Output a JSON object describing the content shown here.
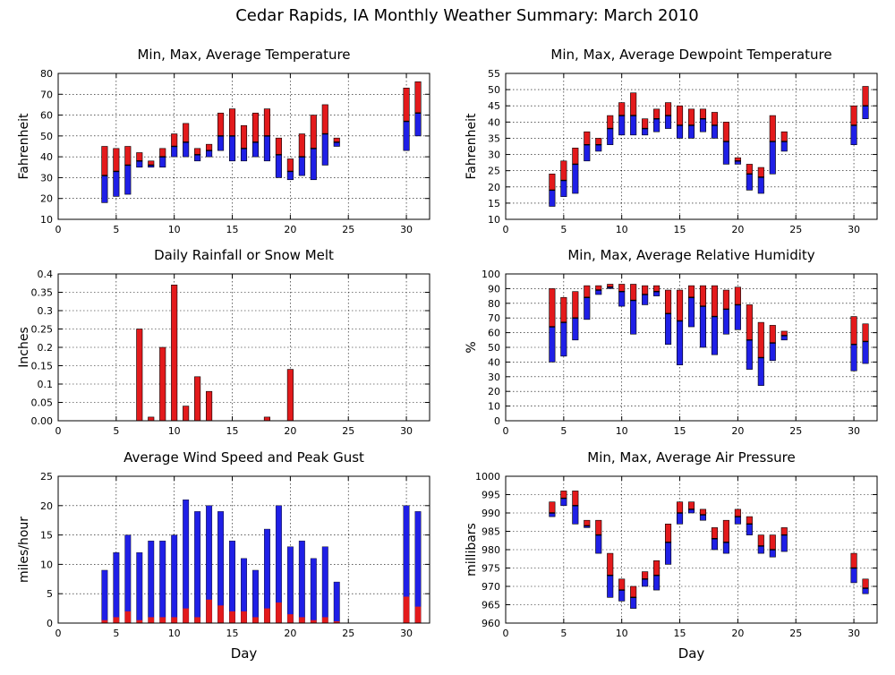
{
  "page_title": "Cedar Rapids, IA Monthly Weather Summary: March 2010",
  "colors": {
    "max_bar": "#e31a1c",
    "min_bar": "#1f1fe6",
    "avg_mark": "#000000",
    "gust_bar": "#1f1fe6",
    "speed_bar": "#e31a1c",
    "rain_bar": "#e31a1c"
  },
  "chart_data": [
    {
      "id": "temperature",
      "type": "bar",
      "title": "Min, Max, Average Temperature",
      "xlabel": "",
      "ylabel": "Fahrenheit",
      "xlim": [
        0,
        32
      ],
      "ylim": [
        10,
        80
      ],
      "x_ticks": [
        0,
        5,
        10,
        15,
        20,
        25,
        30
      ],
      "y_ticks": [
        10,
        20,
        30,
        40,
        50,
        60,
        70,
        80
      ],
      "grid": true,
      "days": [
        {
          "x": 4,
          "min": 18,
          "avg": 31,
          "max": 45
        },
        {
          "x": 5,
          "min": 21,
          "avg": 33,
          "max": 44
        },
        {
          "x": 6,
          "min": 22,
          "avg": 36,
          "max": 45
        },
        {
          "x": 7,
          "min": 35,
          "avg": 38,
          "max": 42
        },
        {
          "x": 8,
          "min": 35,
          "avg": 36,
          "max": 38
        },
        {
          "x": 9,
          "min": 35,
          "avg": 40,
          "max": 44
        },
        {
          "x": 10,
          "min": 40,
          "avg": 45,
          "max": 51
        },
        {
          "x": 11,
          "min": 40,
          "avg": 47,
          "max": 56
        },
        {
          "x": 12,
          "min": 38,
          "avg": 41,
          "max": 44
        },
        {
          "x": 13,
          "min": 40,
          "avg": 43,
          "max": 46
        },
        {
          "x": 14,
          "min": 43,
          "avg": 50,
          "max": 61
        },
        {
          "x": 15,
          "min": 38,
          "avg": 50,
          "max": 63
        },
        {
          "x": 16,
          "min": 38,
          "avg": 44,
          "max": 55
        },
        {
          "x": 17,
          "min": 40,
          "avg": 47,
          "max": 61
        },
        {
          "x": 18,
          "min": 38,
          "avg": 50,
          "max": 63
        },
        {
          "x": 19,
          "min": 30,
          "avg": 41,
          "max": 49
        },
        {
          "x": 20,
          "min": 29,
          "avg": 33,
          "max": 39
        },
        {
          "x": 21,
          "min": 31,
          "avg": 40,
          "max": 51
        },
        {
          "x": 22,
          "min": 29,
          "avg": 44,
          "max": 60
        },
        {
          "x": 23,
          "min": 36,
          "avg": 51,
          "max": 65
        },
        {
          "x": 24,
          "min": 45,
          "avg": 47,
          "max": 49
        },
        {
          "x": 30,
          "min": 43,
          "avg": 57,
          "max": 73
        },
        {
          "x": 31,
          "min": 50,
          "avg": 61,
          "max": 76
        }
      ]
    },
    {
      "id": "dewpoint",
      "type": "bar",
      "title": "Min, Max, Average Dewpoint Temperature",
      "xlabel": "",
      "ylabel": "Fahrenheit",
      "xlim": [
        0,
        32
      ],
      "ylim": [
        10,
        55
      ],
      "x_ticks": [
        0,
        5,
        10,
        15,
        20,
        25,
        30
      ],
      "y_ticks": [
        10,
        15,
        20,
        25,
        30,
        35,
        40,
        45,
        50,
        55
      ],
      "grid": true,
      "days": [
        {
          "x": 4,
          "min": 14,
          "avg": 19,
          "max": 24
        },
        {
          "x": 5,
          "min": 17,
          "avg": 22,
          "max": 28
        },
        {
          "x": 6,
          "min": 18,
          "avg": 27,
          "max": 32
        },
        {
          "x": 7,
          "min": 28,
          "avg": 33,
          "max": 37
        },
        {
          "x": 8,
          "min": 31,
          "avg": 33,
          "max": 35
        },
        {
          "x": 9,
          "min": 33,
          "avg": 38,
          "max": 42
        },
        {
          "x": 10,
          "min": 36,
          "avg": 42,
          "max": 46
        },
        {
          "x": 11,
          "min": 36,
          "avg": 42,
          "max": 49
        },
        {
          "x": 12,
          "min": 36,
          "avg": 38,
          "max": 41
        },
        {
          "x": 13,
          "min": 37,
          "avg": 41,
          "max": 44
        },
        {
          "x": 14,
          "min": 38,
          "avg": 42,
          "max": 46
        },
        {
          "x": 15,
          "min": 35,
          "avg": 39,
          "max": 45
        },
        {
          "x": 16,
          "min": 35,
          "avg": 39,
          "max": 44
        },
        {
          "x": 17,
          "min": 37,
          "avg": 41,
          "max": 44
        },
        {
          "x": 18,
          "min": 35,
          "avg": 39,
          "max": 43
        },
        {
          "x": 19,
          "min": 27,
          "avg": 34,
          "max": 40
        },
        {
          "x": 20,
          "min": 27,
          "avg": 28,
          "max": 29
        },
        {
          "x": 21,
          "min": 19,
          "avg": 24,
          "max": 27
        },
        {
          "x": 22,
          "min": 18,
          "avg": 23,
          "max": 26
        },
        {
          "x": 23,
          "min": 24,
          "avg": 34,
          "max": 42
        },
        {
          "x": 24,
          "min": 31,
          "avg": 34,
          "max": 37
        },
        {
          "x": 30,
          "min": 33,
          "avg": 39,
          "max": 45
        },
        {
          "x": 31,
          "min": 41,
          "avg": 45,
          "max": 51
        }
      ]
    },
    {
      "id": "rainfall",
      "type": "bar",
      "title": "Daily Rainfall or Snow Melt",
      "xlabel": "",
      "ylabel": "Inches",
      "xlim": [
        0,
        32
      ],
      "ylim": [
        0,
        0.4
      ],
      "x_ticks": [
        0,
        5,
        10,
        15,
        20,
        25,
        30
      ],
      "y_ticks": [
        0,
        0.05,
        0.1,
        0.15,
        0.2,
        0.25,
        0.3,
        0.35,
        0.4
      ],
      "y_tick_labels": [
        "0.00",
        "0.05",
        "0.1",
        "0.15",
        "0.2",
        "0.25",
        "0.3",
        "0.35",
        "0.4"
      ],
      "grid": true,
      "values": [
        {
          "x": 7,
          "v": 0.25
        },
        {
          "x": 8,
          "v": 0.01
        },
        {
          "x": 9,
          "v": 0.2
        },
        {
          "x": 10,
          "v": 0.37
        },
        {
          "x": 11,
          "v": 0.04
        },
        {
          "x": 12,
          "v": 0.12
        },
        {
          "x": 13,
          "v": 0.08
        },
        {
          "x": 18,
          "v": 0.01
        },
        {
          "x": 20,
          "v": 0.14
        }
      ]
    },
    {
      "id": "humidity",
      "type": "bar",
      "title": "Min, Max, Average Relative Humidity",
      "xlabel": "",
      "ylabel": "%",
      "xlim": [
        0,
        32
      ],
      "ylim": [
        0,
        100
      ],
      "x_ticks": [
        0,
        5,
        10,
        15,
        20,
        25,
        30
      ],
      "y_ticks": [
        0,
        10,
        20,
        30,
        40,
        50,
        60,
        70,
        80,
        90,
        100
      ],
      "grid": true,
      "days": [
        {
          "x": 4,
          "min": 40,
          "avg": 64,
          "max": 90
        },
        {
          "x": 5,
          "min": 44,
          "avg": 67,
          "max": 84
        },
        {
          "x": 6,
          "min": 55,
          "avg": 70,
          "max": 88
        },
        {
          "x": 7,
          "min": 69,
          "avg": 84,
          "max": 92
        },
        {
          "x": 8,
          "min": 86,
          "avg": 89,
          "max": 92
        },
        {
          "x": 9,
          "min": 90,
          "avg": 91,
          "max": 93
        },
        {
          "x": 10,
          "min": 78,
          "avg": 88,
          "max": 93
        },
        {
          "x": 11,
          "min": 59,
          "avg": 82,
          "max": 93
        },
        {
          "x": 12,
          "min": 79,
          "avg": 86,
          "max": 92
        },
        {
          "x": 13,
          "min": 85,
          "avg": 88,
          "max": 92
        },
        {
          "x": 14,
          "min": 52,
          "avg": 73,
          "max": 89
        },
        {
          "x": 15,
          "min": 38,
          "avg": 68,
          "max": 89
        },
        {
          "x": 16,
          "min": 64,
          "avg": 84,
          "max": 92
        },
        {
          "x": 17,
          "min": 50,
          "avg": 78,
          "max": 92
        },
        {
          "x": 18,
          "min": 45,
          "avg": 71,
          "max": 92
        },
        {
          "x": 19,
          "min": 59,
          "avg": 76,
          "max": 89
        },
        {
          "x": 20,
          "min": 62,
          "avg": 79,
          "max": 91
        },
        {
          "x": 21,
          "min": 35,
          "avg": 55,
          "max": 79
        },
        {
          "x": 22,
          "min": 24,
          "avg": 43,
          "max": 67
        },
        {
          "x": 23,
          "min": 41,
          "avg": 53,
          "max": 65
        },
        {
          "x": 24,
          "min": 55,
          "avg": 58,
          "max": 61
        },
        {
          "x": 30,
          "min": 34,
          "avg": 52,
          "max": 71
        },
        {
          "x": 31,
          "min": 39,
          "avg": 54,
          "max": 66
        }
      ]
    },
    {
      "id": "wind",
      "type": "bar",
      "title": "Average Wind Speed and Peak Gust",
      "xlabel": "Day",
      "ylabel": "miles/hour",
      "xlim": [
        0,
        32
      ],
      "ylim": [
        0,
        25
      ],
      "x_ticks": [
        0,
        5,
        10,
        15,
        20,
        25,
        30
      ],
      "y_ticks": [
        0,
        5,
        10,
        15,
        20,
        25
      ],
      "grid": true,
      "days": [
        {
          "x": 4,
          "speed": 0.5,
          "gust": 9
        },
        {
          "x": 5,
          "speed": 1,
          "gust": 12
        },
        {
          "x": 6,
          "speed": 2,
          "gust": 15
        },
        {
          "x": 7,
          "speed": 0.5,
          "gust": 12
        },
        {
          "x": 8,
          "speed": 1,
          "gust": 14
        },
        {
          "x": 9,
          "speed": 1,
          "gust": 14
        },
        {
          "x": 10,
          "speed": 1,
          "gust": 15
        },
        {
          "x": 11,
          "speed": 2.5,
          "gust": 21
        },
        {
          "x": 12,
          "speed": 1,
          "gust": 19
        },
        {
          "x": 13,
          "speed": 4,
          "gust": 20
        },
        {
          "x": 14,
          "speed": 3,
          "gust": 19
        },
        {
          "x": 15,
          "speed": 2,
          "gust": 14
        },
        {
          "x": 16,
          "speed": 2,
          "gust": 11
        },
        {
          "x": 17,
          "speed": 1,
          "gust": 9
        },
        {
          "x": 18,
          "speed": 2.5,
          "gust": 16
        },
        {
          "x": 19,
          "speed": 3.5,
          "gust": 20
        },
        {
          "x": 20,
          "speed": 1.5,
          "gust": 13
        },
        {
          "x": 21,
          "speed": 1,
          "gust": 14
        },
        {
          "x": 22,
          "speed": 0.5,
          "gust": 11
        },
        {
          "x": 23,
          "speed": 1,
          "gust": 13
        },
        {
          "x": 24,
          "speed": 0.3,
          "gust": 7
        },
        {
          "x": 30,
          "speed": 4.5,
          "gust": 20
        },
        {
          "x": 31,
          "speed": 2.8,
          "gust": 19
        }
      ]
    },
    {
      "id": "pressure",
      "type": "bar",
      "title": "Min, Max, Average Air Pressure",
      "xlabel": "Day",
      "ylabel": "millibars",
      "xlim": [
        0,
        32
      ],
      "ylim": [
        960,
        1000
      ],
      "x_ticks": [
        0,
        5,
        10,
        15,
        20,
        25,
        30
      ],
      "y_ticks": [
        960,
        965,
        970,
        975,
        980,
        985,
        990,
        995,
        1000
      ],
      "grid": true,
      "days": [
        {
          "x": 4,
          "min": 989,
          "avg": 990,
          "max": 993
        },
        {
          "x": 5,
          "min": 992,
          "avg": 994,
          "max": 996
        },
        {
          "x": 6,
          "min": 987,
          "avg": 992,
          "max": 996
        },
        {
          "x": 7,
          "min": 986,
          "avg": 986.5,
          "max": 988
        },
        {
          "x": 8,
          "min": 979,
          "avg": 984,
          "max": 988
        },
        {
          "x": 9,
          "min": 967,
          "avg": 973,
          "max": 979
        },
        {
          "x": 10,
          "min": 966,
          "avg": 969,
          "max": 972
        },
        {
          "x": 11,
          "min": 964,
          "avg": 967,
          "max": 970
        },
        {
          "x": 12,
          "min": 970,
          "avg": 972,
          "max": 974
        },
        {
          "x": 13,
          "min": 969,
          "avg": 973,
          "max": 977
        },
        {
          "x": 14,
          "min": 976,
          "avg": 982,
          "max": 987
        },
        {
          "x": 15,
          "min": 987,
          "avg": 990,
          "max": 993
        },
        {
          "x": 16,
          "min": 990,
          "avg": 991,
          "max": 993
        },
        {
          "x": 17,
          "min": 988,
          "avg": 989.5,
          "max": 991
        },
        {
          "x": 18,
          "min": 980,
          "avg": 983,
          "max": 986
        },
        {
          "x": 19,
          "min": 979,
          "avg": 982,
          "max": 988
        },
        {
          "x": 20,
          "min": 987,
          "avg": 989,
          "max": 991
        },
        {
          "x": 21,
          "min": 984,
          "avg": 987,
          "max": 989
        },
        {
          "x": 22,
          "min": 979,
          "avg": 981,
          "max": 984
        },
        {
          "x": 23,
          "min": 978,
          "avg": 980,
          "max": 984
        },
        {
          "x": 24,
          "min": 979.5,
          "avg": 984,
          "max": 986
        },
        {
          "x": 30,
          "min": 971,
          "avg": 975,
          "max": 979
        },
        {
          "x": 31,
          "min": 968,
          "avg": 969.5,
          "max": 972
        }
      ]
    }
  ]
}
